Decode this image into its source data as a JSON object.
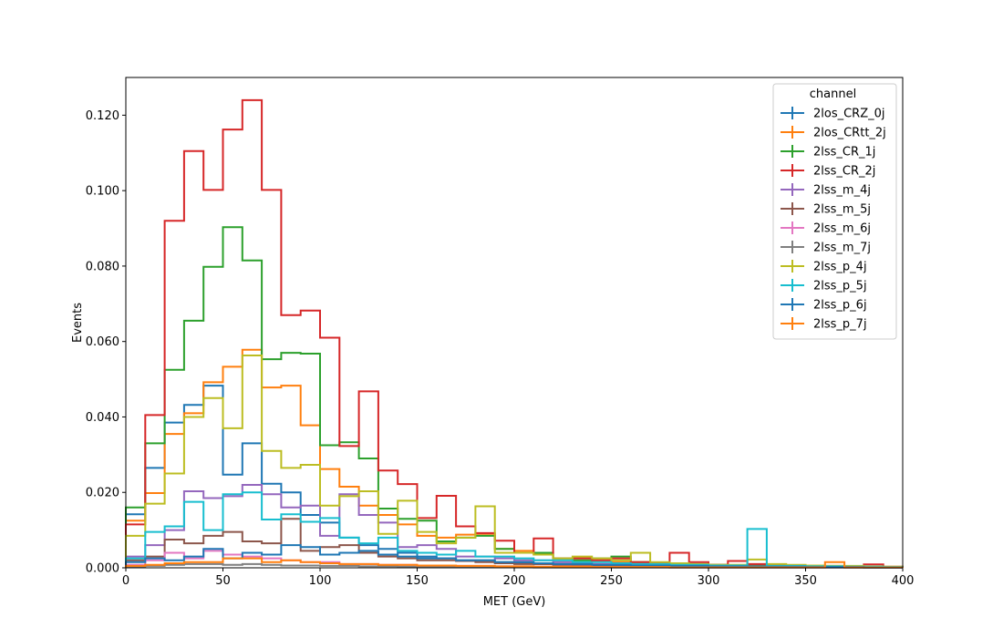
{
  "chart_data": {
    "type": "histogram-step",
    "title": "",
    "xlabel": "MET (GeV)",
    "ylabel": "Events",
    "xlim": [
      0,
      400
    ],
    "ylim": [
      0,
      0.13
    ],
    "x_ticks": [
      0,
      50,
      100,
      150,
      200,
      250,
      300,
      350,
      400
    ],
    "x_tick_labels": [
      "0",
      "50",
      "100",
      "150",
      "200",
      "250",
      "300",
      "350",
      "400"
    ],
    "y_ticks": [
      0,
      0.02,
      0.04,
      0.06,
      0.08,
      0.1,
      0.12
    ],
    "y_tick_labels": [
      "0.000",
      "0.020",
      "0.040",
      "0.060",
      "0.080",
      "0.100",
      "0.120"
    ],
    "bin_edges": [
      0,
      10,
      20,
      30,
      40,
      50,
      60,
      70,
      80,
      90,
      100,
      110,
      120,
      130,
      140,
      150,
      160,
      170,
      180,
      190,
      200,
      210,
      220,
      230,
      240,
      250,
      260,
      270,
      280,
      290,
      300,
      310,
      320,
      330,
      340,
      350,
      360,
      370,
      380,
      390,
      400
    ],
    "legend": {
      "title": "channel",
      "position": "top-right"
    },
    "series": [
      {
        "name": "2los_CRZ_0j",
        "color": "#1f77b4",
        "values": [
          0.0142,
          0.0265,
          0.0385,
          0.0432,
          0.0483,
          0.0247,
          0.033,
          0.0223,
          0.02,
          0.014,
          0.012,
          0.008,
          0.006,
          0.005,
          0.004,
          0.003,
          0.0025,
          0.002,
          0.002,
          0.0015,
          0.0012,
          0.001,
          0.001,
          0.0008,
          0.0008,
          0.0006,
          0.0006,
          0.0005,
          0.0005,
          0.0004,
          0.0004,
          0.0003,
          0.0003,
          0.0003,
          0.0002,
          0.0002,
          0.0002,
          0.0002,
          0.0001,
          0.0001
        ]
      },
      {
        "name": "2los_CRtt_2j",
        "color": "#ff7f0e",
        "values": [
          0.0125,
          0.0198,
          0.0355,
          0.041,
          0.0492,
          0.0533,
          0.0578,
          0.0478,
          0.0483,
          0.0378,
          0.0262,
          0.0215,
          0.0165,
          0.014,
          0.0115,
          0.0085,
          0.008,
          0.0088,
          0.009,
          0.005,
          0.0045,
          0.0035,
          0.0025,
          0.0025,
          0.002,
          0.0015,
          0.0015,
          0.0012,
          0.001,
          0.0008,
          0.0008,
          0.0006,
          0.0006,
          0.0005,
          0.0005,
          0.0004,
          0.0004,
          0.0003,
          0.0003,
          0.0002
        ]
      },
      {
        "name": "2lss_CR_1j",
        "color": "#2ca02c",
        "values": [
          0.016,
          0.033,
          0.0525,
          0.0655,
          0.0798,
          0.0903,
          0.0815,
          0.0553,
          0.057,
          0.0568,
          0.0325,
          0.0333,
          0.029,
          0.0157,
          0.013,
          0.0125,
          0.007,
          0.008,
          0.0085,
          0.005,
          0.004,
          0.004,
          0.0025,
          0.002,
          0.0025,
          0.003,
          0.0015,
          0.0012,
          0.001,
          0.001,
          0.0008,
          0.0006,
          0.0006,
          0.0005,
          0.0005,
          0.0004,
          0.0004,
          0.0003,
          0.0003,
          0.0002
        ]
      },
      {
        "name": "2lss_CR_2j",
        "color": "#d62728",
        "values": [
          0.0115,
          0.0405,
          0.092,
          0.1105,
          0.1002,
          0.1162,
          0.124,
          0.1002,
          0.067,
          0.0682,
          0.061,
          0.0323,
          0.0468,
          0.0258,
          0.0222,
          0.0132,
          0.0191,
          0.011,
          0.0092,
          0.0072,
          0.004,
          0.0078,
          0.0025,
          0.0025,
          0.002,
          0.0025,
          0.0015,
          0.0012,
          0.004,
          0.0015,
          0.0008,
          0.0018,
          0.001,
          0.0008,
          0.0006,
          0.0005,
          0.0005,
          0.0004,
          0.0009,
          0.0003
        ]
      },
      {
        "name": "2lss_m_4j",
        "color": "#9467bd",
        "values": [
          0.003,
          0.006,
          0.01,
          0.0203,
          0.0185,
          0.019,
          0.022,
          0.0195,
          0.016,
          0.0165,
          0.0085,
          0.0195,
          0.014,
          0.012,
          0.0055,
          0.006,
          0.005,
          0.003,
          0.003,
          0.0025,
          0.002,
          0.002,
          0.0015,
          0.0012,
          0.001,
          0.001,
          0.0008,
          0.0008,
          0.0006,
          0.0005,
          0.0005,
          0.0004,
          0.0004,
          0.0003,
          0.0003,
          0.0002,
          0.0002,
          0.0002,
          0.0001,
          0.0001
        ]
      },
      {
        "name": "2lss_m_5j",
        "color": "#8c564b",
        "values": [
          0.002,
          0.003,
          0.0075,
          0.0065,
          0.0085,
          0.0095,
          0.007,
          0.0065,
          0.013,
          0.0045,
          0.0055,
          0.006,
          0.004,
          0.003,
          0.0025,
          0.002,
          0.002,
          0.0018,
          0.0015,
          0.0012,
          0.001,
          0.001,
          0.0008,
          0.0008,
          0.0006,
          0.0006,
          0.0005,
          0.0005,
          0.0004,
          0.0004,
          0.0003,
          0.0003,
          0.0003,
          0.0002,
          0.0002,
          0.0002,
          0.0002,
          0.0001,
          0.0001,
          0.0001
        ]
      },
      {
        "name": "2lss_m_6j",
        "color": "#e377c2",
        "values": [
          0.0008,
          0.002,
          0.004,
          0.0025,
          0.0045,
          0.0035,
          0.003,
          0.0025,
          0.002,
          0.0015,
          0.0015,
          0.001,
          0.001,
          0.0008,
          0.0008,
          0.0006,
          0.0006,
          0.0005,
          0.0005,
          0.0004,
          0.0004,
          0.0003,
          0.0003,
          0.0003,
          0.0002,
          0.0002,
          0.0002,
          0.0002,
          0.0001,
          0.0001,
          0.0001,
          0.0001,
          0.0001,
          0.0001,
          0.0001,
          0.0001,
          0.0001,
          0.0001,
          0.0001,
          0.0001
        ]
      },
      {
        "name": "2lss_m_7j",
        "color": "#7f7f7f",
        "values": [
          0.0003,
          0.0005,
          0.0008,
          0.001,
          0.001,
          0.0008,
          0.001,
          0.0008,
          0.0006,
          0.0006,
          0.0005,
          0.0005,
          0.0004,
          0.0004,
          0.0003,
          0.0003,
          0.0003,
          0.0002,
          0.0002,
          0.0002,
          0.0002,
          0.0001,
          0.0001,
          0.0001,
          0.0001,
          0.0001,
          0.0001,
          0.0001,
          0.0001,
          0.0001,
          0.0001,
          0.0001,
          0.0001,
          0.0001,
          0.0001,
          0.0001,
          0.0001,
          0.0001,
          0.0001,
          0.0001
        ]
      },
      {
        "name": "2lss_p_4j",
        "color": "#bcbd22",
        "values": [
          0.0085,
          0.017,
          0.025,
          0.04,
          0.045,
          0.037,
          0.0563,
          0.031,
          0.0265,
          0.0273,
          0.0165,
          0.019,
          0.0203,
          0.009,
          0.0178,
          0.0095,
          0.0065,
          0.008,
          0.0163,
          0.004,
          0.004,
          0.0035,
          0.0025,
          0.003,
          0.0025,
          0.002,
          0.004,
          0.0015,
          0.0012,
          0.001,
          0.0008,
          0.0008,
          0.0022,
          0.001,
          0.0008,
          0.0006,
          0.0005,
          0.0005,
          0.0004,
          0.0003
        ]
      },
      {
        "name": "2lss_p_5j",
        "color": "#17becf",
        "values": [
          0.0025,
          0.0095,
          0.011,
          0.0175,
          0.01,
          0.0195,
          0.02,
          0.0128,
          0.0142,
          0.0122,
          0.0132,
          0.008,
          0.0065,
          0.008,
          0.0045,
          0.004,
          0.0035,
          0.0045,
          0.003,
          0.003,
          0.0025,
          0.002,
          0.002,
          0.0015,
          0.0015,
          0.0012,
          0.001,
          0.001,
          0.0008,
          0.0008,
          0.0006,
          0.0006,
          0.0103,
          0.0005,
          0.0005,
          0.0004,
          0.0004,
          0.0003,
          0.0003,
          0.0002
        ]
      },
      {
        "name": "2lss_p_6j",
        "color": "#1f77b4",
        "values": [
          0.0015,
          0.0025,
          0.002,
          0.003,
          0.005,
          0.0025,
          0.004,
          0.0035,
          0.006,
          0.0055,
          0.0035,
          0.004,
          0.0045,
          0.0035,
          0.003,
          0.0025,
          0.0025,
          0.002,
          0.002,
          0.0015,
          0.0015,
          0.0012,
          0.001,
          0.001,
          0.0008,
          0.0008,
          0.0006,
          0.0006,
          0.0005,
          0.0005,
          0.0004,
          0.0004,
          0.0003,
          0.0003,
          0.0003,
          0.0002,
          0.0002,
          0.0002,
          0.0001,
          0.0001
        ]
      },
      {
        "name": "2lss_p_7j",
        "color": "#ff7f0e",
        "values": [
          0.0005,
          0.0008,
          0.0012,
          0.0015,
          0.0015,
          0.0025,
          0.0025,
          0.0015,
          0.002,
          0.0015,
          0.0012,
          0.001,
          0.001,
          0.0008,
          0.0008,
          0.0006,
          0.0006,
          0.0005,
          0.0005,
          0.0004,
          0.0004,
          0.0003,
          0.0003,
          0.0003,
          0.0002,
          0.0002,
          0.0002,
          0.0002,
          0.0001,
          0.0001,
          0.0001,
          0.0001,
          0.0001,
          0.0001,
          0.0001,
          0.0001,
          0.0015,
          0.0001,
          0.0001,
          0.0001
        ]
      }
    ]
  }
}
